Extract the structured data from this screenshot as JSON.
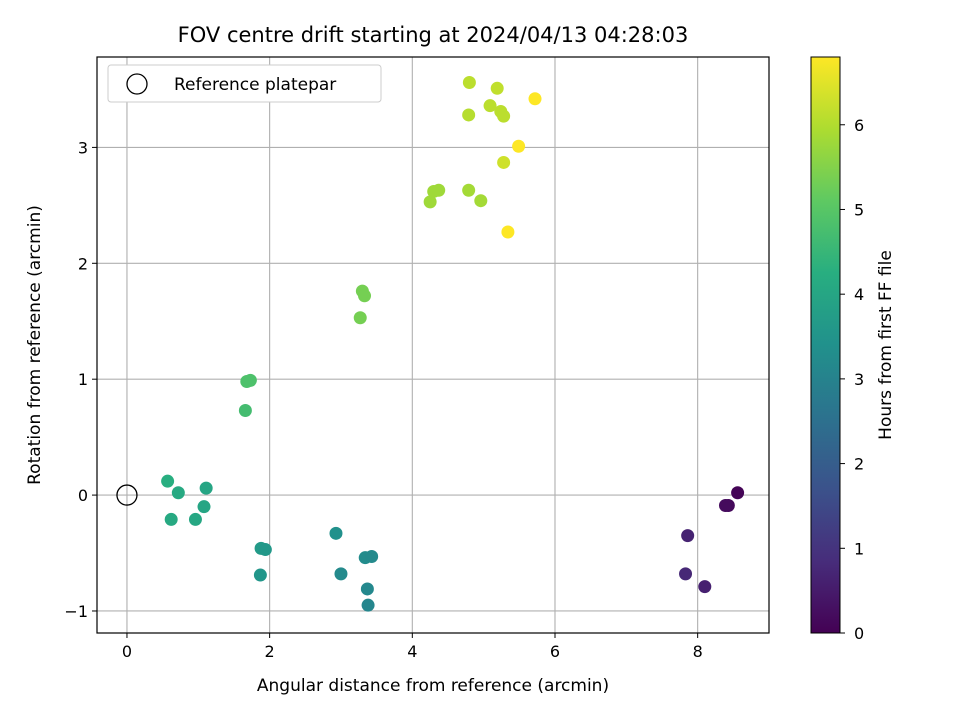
{
  "chart_data": {
    "type": "scatter",
    "title": "FOV centre drift starting at 2024/04/13 04:28:03",
    "xlabel": "Angular distance from reference (arcmin)",
    "ylabel": "Rotation from reference (arcmin)",
    "xlim": [
      -0.42,
      9.0
    ],
    "ylim": [
      -1.19,
      3.78
    ],
    "xticks": [
      0,
      2,
      4,
      6,
      8
    ],
    "yticks": [
      -1,
      0,
      1,
      2,
      3
    ],
    "grid": true,
    "legend": {
      "position": "top-left",
      "entries": [
        "Reference platepar"
      ]
    },
    "reference_point": {
      "x": 0,
      "y": 0,
      "label": "Reference platepar"
    },
    "colorbar": {
      "label": "Hours from first FF file",
      "range": [
        0,
        6.8
      ],
      "ticks": [
        0,
        1,
        2,
        3,
        4,
        5,
        6
      ],
      "colormap": "viridis"
    },
    "points": [
      {
        "x": 8.56,
        "y": 0.02,
        "hours": 0.05
      },
      {
        "x": 8.43,
        "y": -0.09,
        "hours": 0.15
      },
      {
        "x": 8.39,
        "y": -0.09,
        "hours": 0.2
      },
      {
        "x": 7.86,
        "y": -0.35,
        "hours": 0.65
      },
      {
        "x": 7.83,
        "y": -0.68,
        "hours": 0.75
      },
      {
        "x": 8.1,
        "y": -0.79,
        "hours": 0.6
      },
      {
        "x": 3.38,
        "y": -0.95,
        "hours": 3.1
      },
      {
        "x": 3.37,
        "y": -0.81,
        "hours": 3.15
      },
      {
        "x": 3.0,
        "y": -0.68,
        "hours": 3.2
      },
      {
        "x": 3.34,
        "y": -0.54,
        "hours": 3.25
      },
      {
        "x": 3.43,
        "y": -0.53,
        "hours": 3.2
      },
      {
        "x": 2.93,
        "y": -0.33,
        "hours": 3.4
      },
      {
        "x": 1.87,
        "y": -0.69,
        "hours": 3.55
      },
      {
        "x": 1.88,
        "y": -0.46,
        "hours": 3.65
      },
      {
        "x": 1.94,
        "y": -0.47,
        "hours": 3.6
      },
      {
        "x": 0.96,
        "y": -0.21,
        "hours": 4.05
      },
      {
        "x": 0.62,
        "y": -0.21,
        "hours": 4.1
      },
      {
        "x": 1.08,
        "y": -0.1,
        "hours": 4.0
      },
      {
        "x": 1.11,
        "y": 0.06,
        "hours": 4.0
      },
      {
        "x": 0.72,
        "y": 0.02,
        "hours": 4.1
      },
      {
        "x": 0.57,
        "y": 0.12,
        "hours": 4.25
      },
      {
        "x": 1.66,
        "y": 0.73,
        "hours": 4.7
      },
      {
        "x": 1.68,
        "y": 0.98,
        "hours": 4.85
      },
      {
        "x": 1.73,
        "y": 0.99,
        "hours": 4.85
      },
      {
        "x": 3.27,
        "y": 1.53,
        "hours": 5.35
      },
      {
        "x": 3.3,
        "y": 1.76,
        "hours": 5.35
      },
      {
        "x": 3.33,
        "y": 1.72,
        "hours": 5.35
      },
      {
        "x": 4.25,
        "y": 2.53,
        "hours": 5.8
      },
      {
        "x": 4.3,
        "y": 2.62,
        "hours": 5.8
      },
      {
        "x": 4.37,
        "y": 2.63,
        "hours": 5.8
      },
      {
        "x": 4.79,
        "y": 2.63,
        "hours": 5.85
      },
      {
        "x": 4.96,
        "y": 2.54,
        "hours": 5.85
      },
      {
        "x": 4.79,
        "y": 3.28,
        "hours": 6.05
      },
      {
        "x": 4.8,
        "y": 3.56,
        "hours": 6.1
      },
      {
        "x": 5.09,
        "y": 3.36,
        "hours": 6.1
      },
      {
        "x": 5.19,
        "y": 3.51,
        "hours": 6.15
      },
      {
        "x": 5.24,
        "y": 3.31,
        "hours": 6.1
      },
      {
        "x": 5.28,
        "y": 3.27,
        "hours": 6.1
      },
      {
        "x": 5.28,
        "y": 2.87,
        "hours": 6.3
      },
      {
        "x": 5.34,
        "y": 2.27,
        "hours": 6.8
      },
      {
        "x": 5.49,
        "y": 3.01,
        "hours": 6.8
      },
      {
        "x": 5.72,
        "y": 3.42,
        "hours": 6.8
      }
    ]
  }
}
